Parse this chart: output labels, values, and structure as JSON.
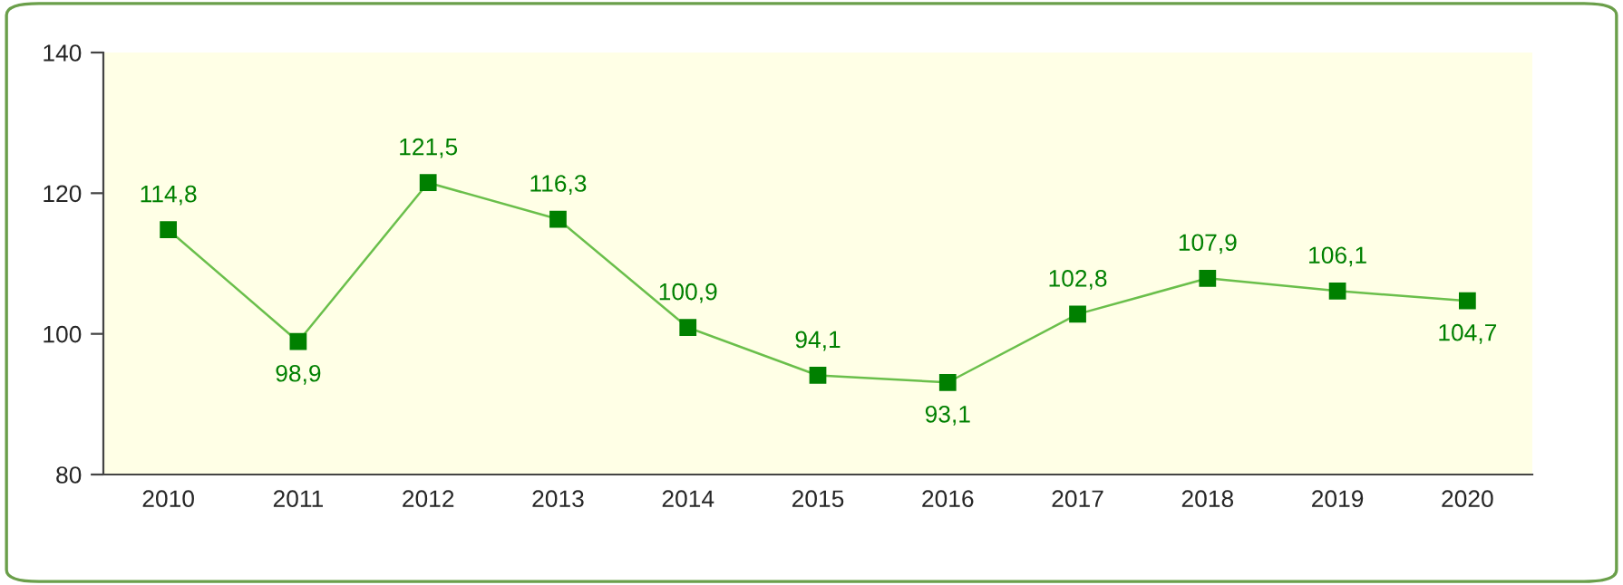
{
  "chart_data": {
    "type": "line",
    "categories": [
      "2010",
      "2011",
      "2012",
      "2013",
      "2014",
      "2015",
      "2016",
      "2017",
      "2018",
      "2019",
      "2020"
    ],
    "series": [
      {
        "color": "#008000",
        "values": [
          114.8,
          98.9,
          121.5,
          116.3,
          100.9,
          94.1,
          93.1,
          102.8,
          107.9,
          106.1,
          104.7
        ],
        "value_labels": [
          "114,8",
          "98,9",
          "121,5",
          "116,3",
          "100,9",
          "94,1",
          "93,1",
          "102,8",
          "107,9",
          "106,1",
          "104,7"
        ]
      }
    ],
    "ylim": [
      80,
      140
    ],
    "yticks": [
      80,
      100,
      120,
      140
    ],
    "grid": false,
    "legend": false,
    "marker": "square",
    "line_style": "solid"
  }
}
